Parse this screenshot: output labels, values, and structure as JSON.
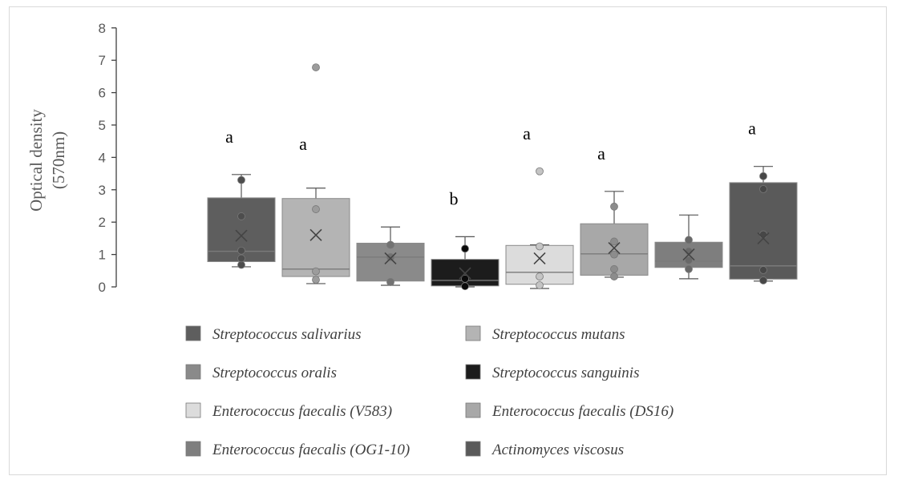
{
  "chart_data": {
    "type": "box",
    "ylabel_line1": "Optical density",
    "ylabel_line2": "(570nm)",
    "ylim": [
      0,
      8
    ],
    "yticks": [
      "0",
      "1",
      "2",
      "3",
      "4",
      "5",
      "6",
      "7",
      "8"
    ],
    "grid": false,
    "legend_position": "bottom",
    "series": [
      {
        "name": "Streptococcus salivarius",
        "color": "#5e5e5e",
        "mark": "#4d4d4d",
        "whisker_min": 0.62,
        "q1": 0.78,
        "median": 1.1,
        "q3": 2.75,
        "whisker_max": 3.47,
        "mean": 1.58,
        "points": [
          0.68,
          0.88,
          1.12,
          2.18,
          3.3
        ],
        "outliers": [],
        "sig": "a"
      },
      {
        "name": "Streptococcus mutans",
        "color": "#b4b4b4",
        "mark": "#9c9c9c",
        "whisker_min": 0.1,
        "q1": 0.32,
        "median": 0.55,
        "q3": 2.73,
        "whisker_max": 3.05,
        "mean": 1.6,
        "points": [
          0.22,
          0.48,
          2.4
        ],
        "outliers": [
          6.78
        ],
        "sig": "a"
      },
      {
        "name": "Streptococcus oralis",
        "color": "#8a8a8a",
        "mark": "#727272",
        "whisker_min": 0.05,
        "q1": 0.18,
        "median": 0.92,
        "q3": 1.35,
        "whisker_max": 1.85,
        "mean": 0.88,
        "points": [
          0.15,
          0.92,
          1.3
        ],
        "outliers": [],
        "sig": ""
      },
      {
        "name": "Streptococcus sanguinis",
        "color": "#1c1c1c",
        "mark": "#0a0a0a",
        "whisker_min": 0.0,
        "q1": 0.03,
        "median": 0.2,
        "q3": 0.85,
        "whisker_max": 1.55,
        "mean": 0.42,
        "points": [
          0.02,
          0.25,
          1.18
        ],
        "outliers": [],
        "sig": "b"
      },
      {
        "name": "Enterococcus faecalis (V583)",
        "color": "#dcdcdc",
        "mark": "#c4c4c4",
        "whisker_min": -0.05,
        "q1": 0.08,
        "median": 0.45,
        "q3": 1.28,
        "whisker_max": 1.3,
        "mean": 0.88,
        "points": [
          0.05,
          0.32,
          1.25
        ],
        "outliers": [
          3.57
        ],
        "sig": "a"
      },
      {
        "name": "Enterococcus faecalis (DS16)",
        "color": "#a8a8a8",
        "mark": "#8c8c8c",
        "whisker_min": 0.3,
        "q1": 0.36,
        "median": 1.02,
        "q3": 1.95,
        "whisker_max": 2.95,
        "mean": 1.2,
        "points": [
          0.32,
          0.55,
          1.0,
          1.4,
          2.48
        ],
        "outliers": [],
        "sig": "a"
      },
      {
        "name": "Enterococcus faecalis (OG1-10)",
        "color": "#7e7e7e",
        "mark": "#686868",
        "whisker_min": 0.25,
        "q1": 0.6,
        "median": 0.8,
        "q3": 1.38,
        "whisker_max": 2.22,
        "mean": 1.0,
        "points": [
          0.55,
          0.82,
          1.1,
          1.45
        ],
        "outliers": [],
        "sig": ""
      },
      {
        "name": "Actinomyces viscosus",
        "color": "#5a5a5a",
        "mark": "#474747",
        "whisker_min": 0.18,
        "q1": 0.24,
        "median": 0.65,
        "q3": 3.22,
        "whisker_max": 3.72,
        "mean": 1.5,
        "points": [
          0.2,
          0.52,
          1.62,
          3.02,
          3.42
        ],
        "outliers": [],
        "sig": "a"
      }
    ]
  }
}
